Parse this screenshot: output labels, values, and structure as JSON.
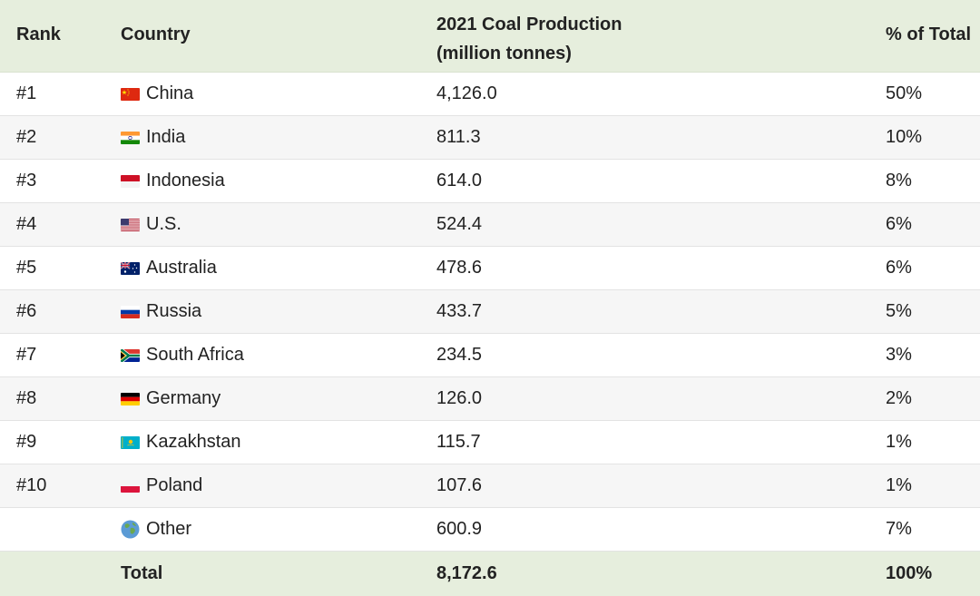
{
  "header": {
    "rank": "Rank",
    "country": "Country",
    "production_line1": "2021 Coal Production",
    "production_line2": "(million tonnes)",
    "percent": "% of Total"
  },
  "rows": [
    {
      "rank": "#1",
      "country": "China",
      "flag_icon": "china-flag-icon",
      "production": "4,126.0",
      "percent": "50%"
    },
    {
      "rank": "#2",
      "country": "India",
      "flag_icon": "india-flag-icon",
      "production": "811.3",
      "percent": "10%"
    },
    {
      "rank": "#3",
      "country": "Indonesia",
      "flag_icon": "indonesia-flag-icon",
      "production": "614.0",
      "percent": "8%"
    },
    {
      "rank": "#4",
      "country": "U.S.",
      "flag_icon": "us-flag-icon",
      "production": "524.4",
      "percent": "6%"
    },
    {
      "rank": "#5",
      "country": "Australia",
      "flag_icon": "australia-flag-icon",
      "production": "478.6",
      "percent": "6%"
    },
    {
      "rank": "#6",
      "country": "Russia",
      "flag_icon": "russia-flag-icon",
      "production": "433.7",
      "percent": "5%"
    },
    {
      "rank": "#7",
      "country": "South Africa",
      "flag_icon": "south-africa-flag-icon",
      "production": "234.5",
      "percent": "3%"
    },
    {
      "rank": "#8",
      "country": "Germany",
      "flag_icon": "germany-flag-icon",
      "production": "126.0",
      "percent": "2%"
    },
    {
      "rank": "#9",
      "country": "Kazakhstan",
      "flag_icon": "kazakhstan-flag-icon",
      "production": "115.7",
      "percent": "1%"
    },
    {
      "rank": "#10",
      "country": "Poland",
      "flag_icon": "poland-flag-icon",
      "production": "107.6",
      "percent": "1%"
    },
    {
      "rank": "",
      "country": "Other",
      "flag_icon": "globe-icon",
      "production": "600.9",
      "percent": "7%"
    }
  ],
  "total": {
    "label": "Total",
    "production": "8,172.6",
    "percent": "100%"
  },
  "colors": {
    "header_bg": "#e6eedd",
    "alt_row_bg": "#f6f6f6",
    "text": "#222222"
  }
}
